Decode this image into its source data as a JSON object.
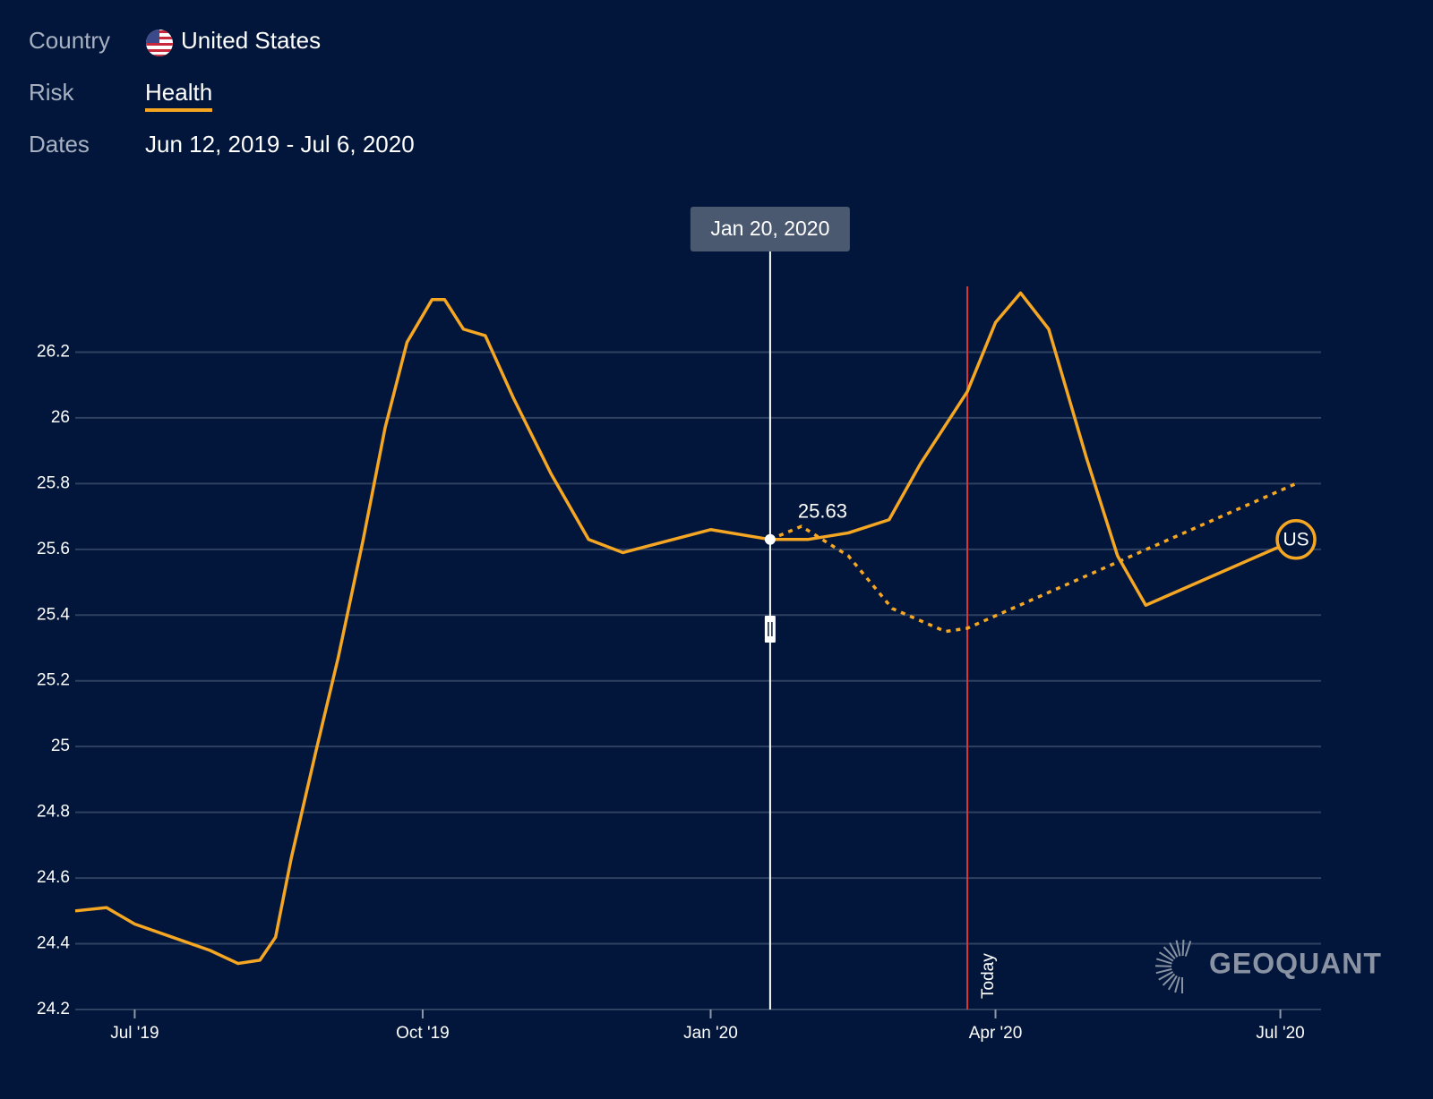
{
  "header": {
    "country_label": "Country",
    "country": "United States",
    "risk_label": "Risk",
    "risk": "Health",
    "dates_label": "Dates",
    "dates": "Jun 12, 2019 - Jul 6, 2020"
  },
  "chart_data": {
    "type": "line",
    "xlim": [
      "2019-06-12",
      "2020-07-14"
    ],
    "xticks": [
      {
        "value": "2019-07-01",
        "label": "Jul '19"
      },
      {
        "value": "2019-10-01",
        "label": "Oct '19"
      },
      {
        "value": "2020-01-01",
        "label": "Jan '20"
      },
      {
        "value": "2020-04-01",
        "label": "Apr '20"
      },
      {
        "value": "2020-07-01",
        "label": "Jul '20"
      }
    ],
    "ylim": [
      24.2,
      26.4
    ],
    "yticks": [
      24.2,
      24.4,
      24.6,
      24.8,
      25,
      25.2,
      25.4,
      25.6,
      25.8,
      26,
      26.2
    ],
    "grid": true,
    "series": [
      {
        "color": "#f5a623",
        "style": "solid",
        "end_label": "US",
        "x": [
          "2019-06-12",
          "2019-06-22",
          "2019-07-01",
          "2019-07-13",
          "2019-07-25",
          "2019-08-03",
          "2019-08-10",
          "2019-08-15",
          "2019-08-20",
          "2019-08-28",
          "2019-09-04",
          "2019-09-12",
          "2019-09-19",
          "2019-09-26",
          "2019-10-04",
          "2019-10-08",
          "2019-10-14",
          "2019-10-21",
          "2019-10-30",
          "2019-11-11",
          "2019-11-23",
          "2019-12-04",
          "2019-12-16",
          "2020-01-01",
          "2020-01-20",
          "2020-02-01",
          "2020-02-14",
          "2020-02-27",
          "2020-03-08",
          "2020-03-23",
          "2020-04-01",
          "2020-04-09",
          "2020-04-18",
          "2020-04-30",
          "2020-05-10",
          "2020-05-19",
          "2020-07-06"
        ],
        "values": [
          24.5,
          24.51,
          24.46,
          24.42,
          24.38,
          24.34,
          24.35,
          24.42,
          24.66,
          24.99,
          25.27,
          25.63,
          25.97,
          26.23,
          26.36,
          26.36,
          26.27,
          26.25,
          26.06,
          25.83,
          25.63,
          25.59,
          25.62,
          25.66,
          25.63,
          25.63,
          25.65,
          25.69,
          25.86,
          26.08,
          26.29,
          26.38,
          26.27,
          25.88,
          25.58,
          25.43,
          25.63
        ]
      },
      {
        "color": "#f5a623",
        "style": "dotted",
        "x": [
          "2020-01-20",
          "2020-01-30",
          "2020-02-14",
          "2020-02-28",
          "2020-03-16",
          "2020-03-23",
          "2020-07-06"
        ],
        "values": [
          25.63,
          25.67,
          25.58,
          25.42,
          25.35,
          25.36,
          25.8
        ]
      }
    ],
    "today": {
      "x": "2020-03-23",
      "label": "Today",
      "color": "#d9363e"
    },
    "cursor": {
      "x": "2020-01-20",
      "label": "Jan 20, 2020",
      "value": 25.63
    },
    "watermark": "GEOQUANT"
  }
}
